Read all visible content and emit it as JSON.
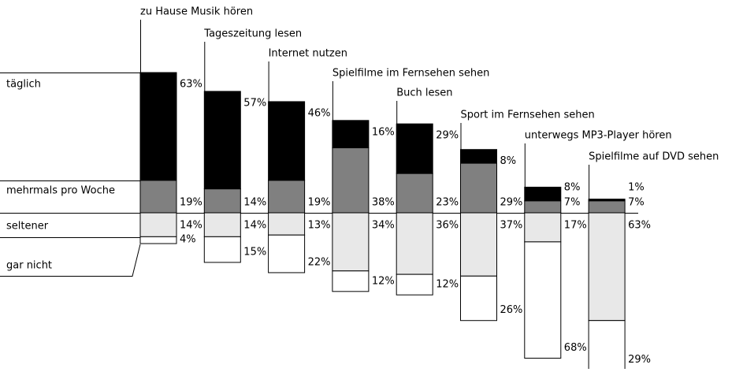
{
  "chart_data": {
    "type": "diverging-stacked-bar",
    "categories": [
      "zu Hause Musik hören",
      "Tageszeitung lesen",
      "Internet nutzen",
      "Spielfilme im Fernsehen sehen",
      "Buch lesen",
      "Sport im Fernsehen sehen",
      "unterwegs MP3-Player hören",
      "Spielfilme auf DVD sehen"
    ],
    "series": [
      {
        "name": "täglich",
        "color": "#000000",
        "values": [
          63,
          57,
          46,
          16,
          29,
          8,
          8,
          1
        ],
        "value_labels": [
          "63%",
          "57%",
          "46%",
          "16%",
          "29%",
          "8%",
          "8%",
          "1%"
        ]
      },
      {
        "name": "mehrmals pro Woche",
        "color": "#808080",
        "values": [
          19,
          14,
          19,
          38,
          23,
          29,
          7,
          7
        ],
        "value_labels": [
          "19%",
          "14%",
          "19%",
          "38%",
          "23%",
          "29%",
          "7%",
          "7%"
        ]
      },
      {
        "name": "seltener",
        "color": "#e8e8e8",
        "values": [
          14,
          14,
          13,
          34,
          36,
          37,
          17,
          63
        ],
        "value_labels": [
          "14%",
          "14%",
          "13%",
          "34%",
          "36%",
          "37%",
          "17%",
          "63%"
        ]
      },
      {
        "name": "gar nicht",
        "color": "#ffffff",
        "values": [
          4,
          15,
          22,
          12,
          12,
          26,
          68,
          29
        ],
        "value_labels": [
          "4%",
          "15%",
          "22%",
          "12%",
          "12%",
          "26%",
          "68%",
          "29%"
        ]
      }
    ]
  }
}
